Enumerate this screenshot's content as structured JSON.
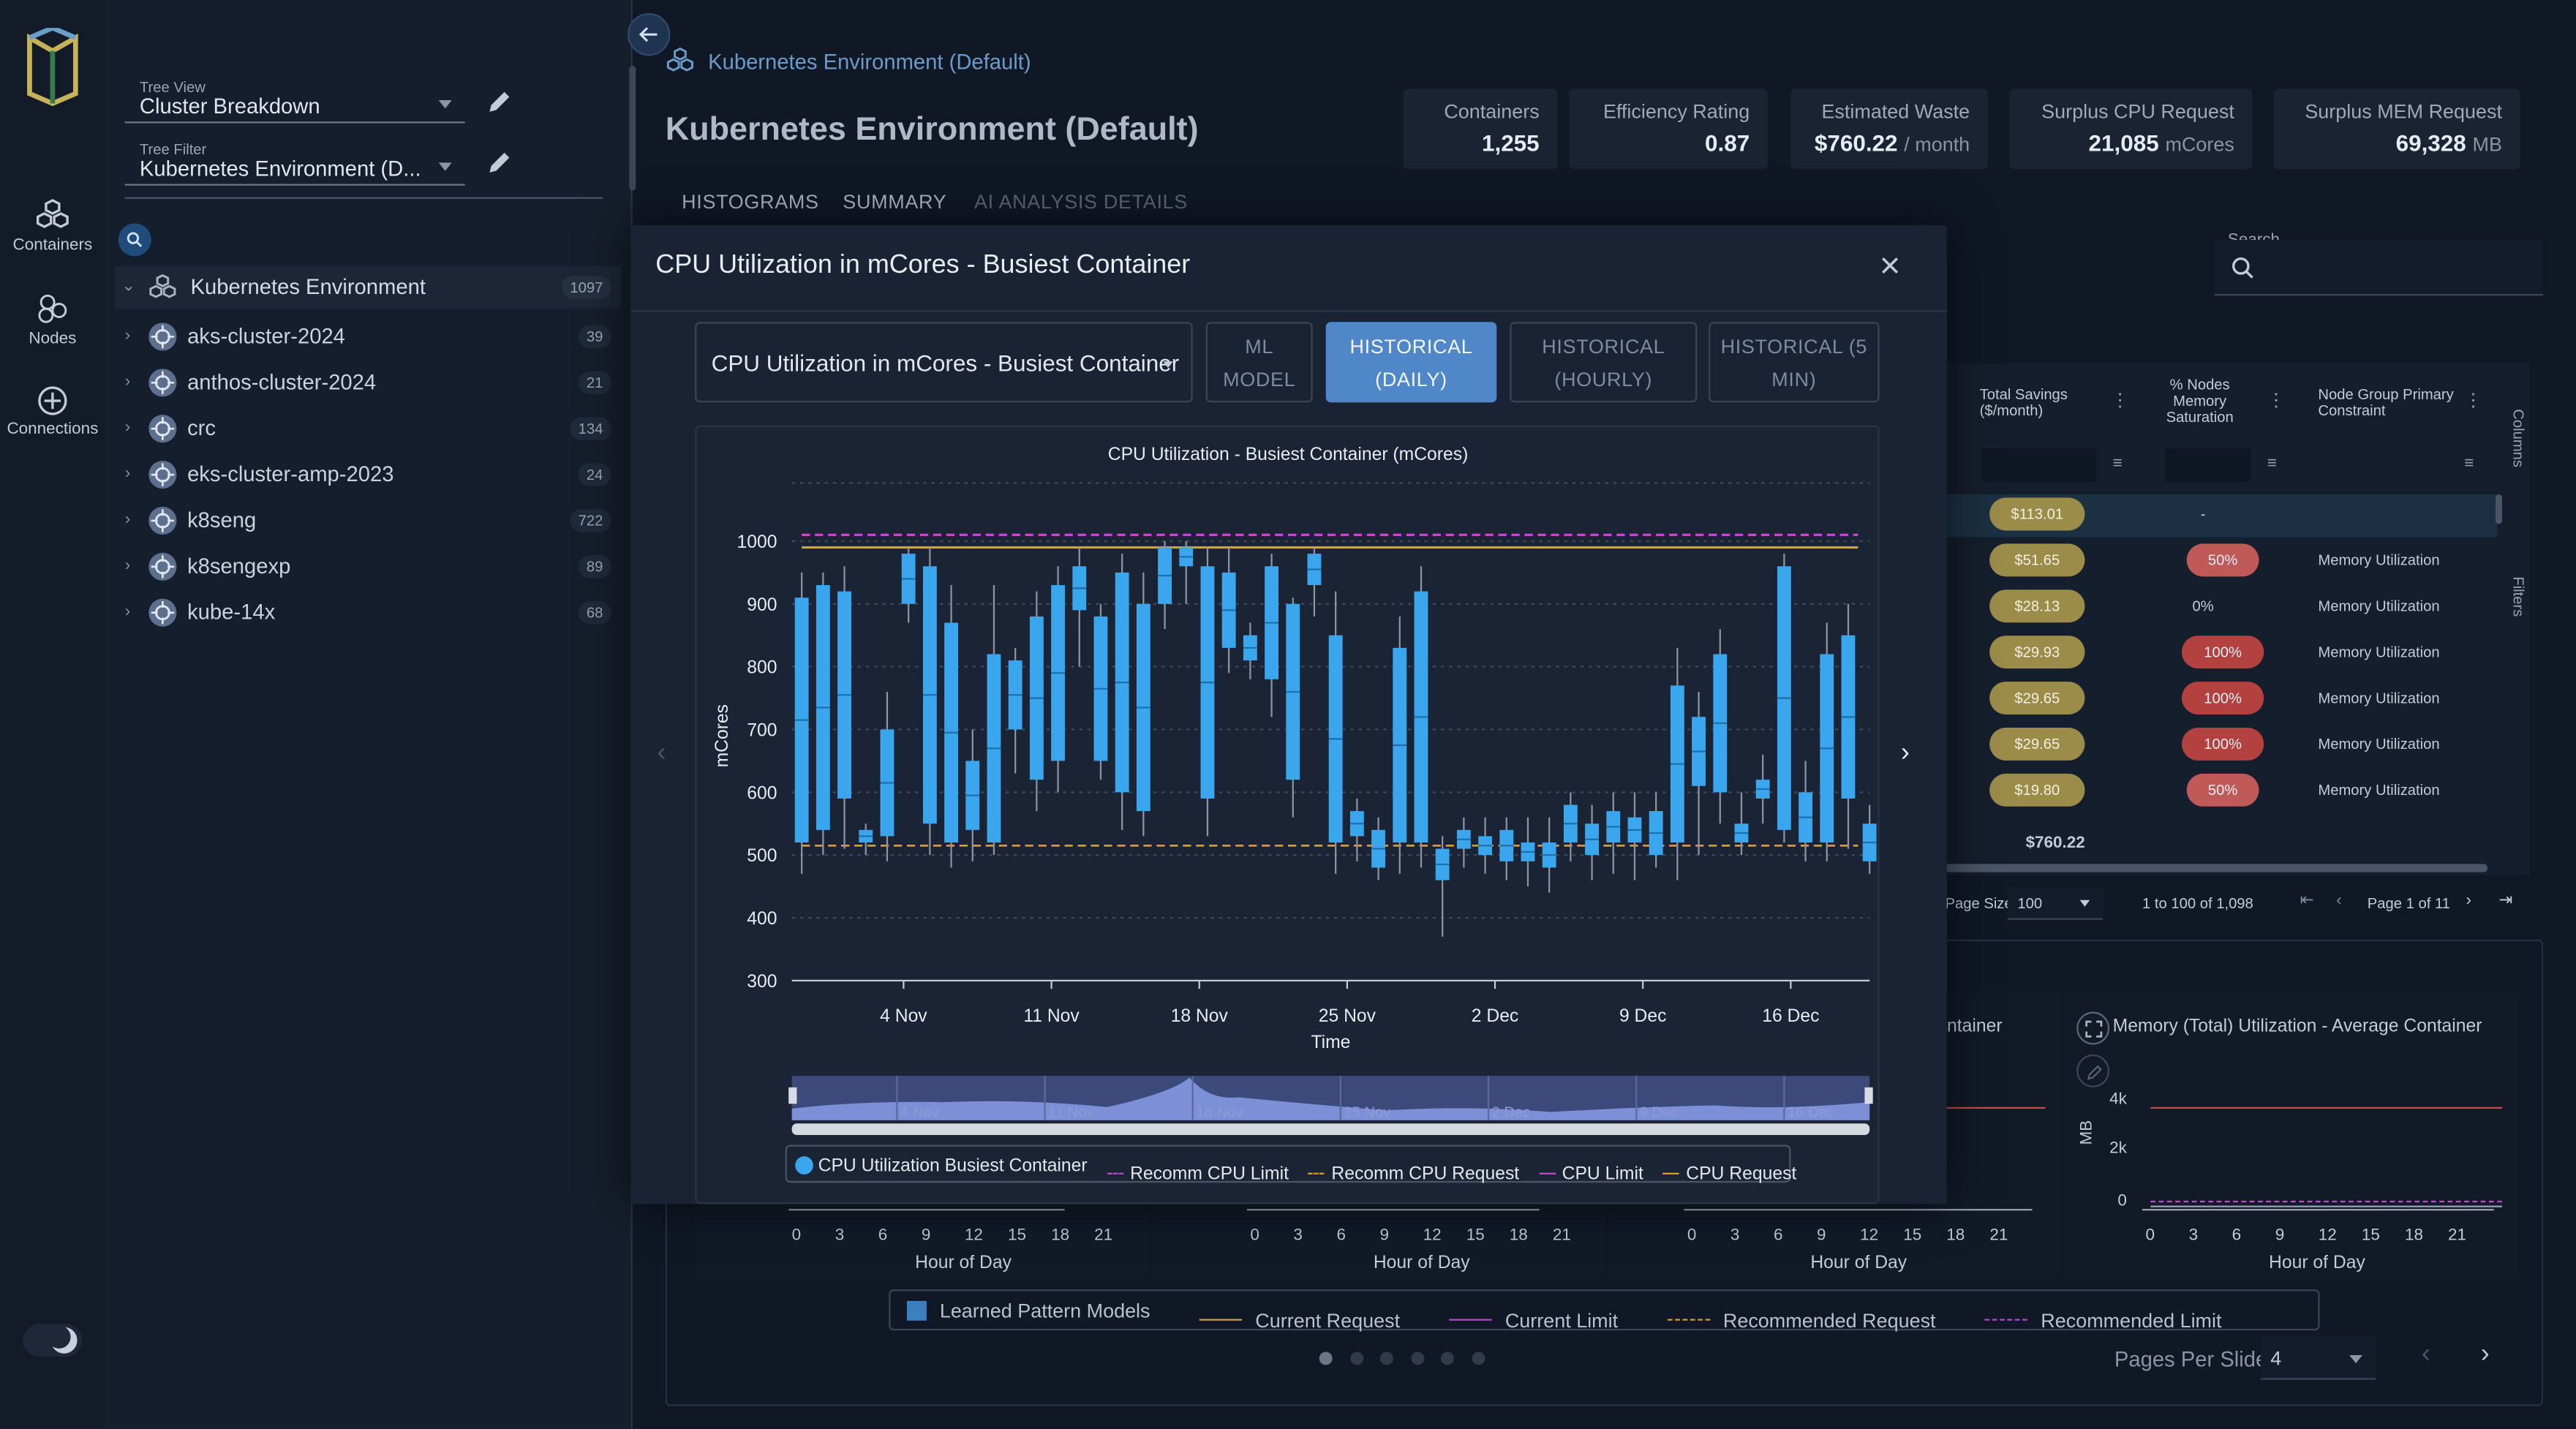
{
  "rail": {
    "items": [
      {
        "label": "Containers",
        "icon": "containers-icon"
      },
      {
        "label": "Nodes",
        "icon": "nodes-icon"
      },
      {
        "label": "Connections",
        "icon": "connections-icon"
      }
    ]
  },
  "tree": {
    "view_label": "Tree View",
    "view_value": "Cluster Breakdown",
    "filter_label": "Tree Filter",
    "filter_value": "Kubernetes Environment (D...",
    "root": {
      "name": "Kubernetes Environment",
      "count": "1097"
    },
    "items": [
      {
        "name": "aks-cluster-2024",
        "count": "39"
      },
      {
        "name": "anthos-cluster-2024",
        "count": "21"
      },
      {
        "name": "crc",
        "count": "134"
      },
      {
        "name": "eks-cluster-amp-2023",
        "count": "24"
      },
      {
        "name": "k8seng",
        "count": "722"
      },
      {
        "name": "k8sengexp",
        "count": "89"
      },
      {
        "name": "kube-14x",
        "count": "68"
      }
    ]
  },
  "header": {
    "breadcrumb": "Kubernetes Environment (Default)",
    "title": "Kubernetes Environment (Default)",
    "stats": [
      {
        "title": "Containers",
        "value": "1,255",
        "unit": ""
      },
      {
        "title": "Efficiency Rating",
        "value": "0.87",
        "unit": ""
      },
      {
        "title": "Estimated Waste",
        "value": "$760.22",
        "unit": "/ month"
      },
      {
        "title": "Surplus CPU Request",
        "value": "21,085",
        "unit": "mCores"
      },
      {
        "title": "Surplus MEM Request",
        "value": "69,328",
        "unit": "MB"
      }
    ],
    "tabs": [
      "HISTOGRAMS",
      "SUMMARY",
      "AI ANALYSIS DETAILS"
    ]
  },
  "search": {
    "label": "Search"
  },
  "grid": {
    "columns": [
      "Total Savings ($/month)",
      "% Nodes Memory Saturation",
      "Node Group Primary Constraint"
    ],
    "rows": [
      {
        "savings": "$113.01",
        "sat": "-",
        "constraint": ""
      },
      {
        "savings": "$51.65",
        "sat": "50%",
        "constraint": "Memory Utilization"
      },
      {
        "savings": "$28.13",
        "sat": "0%",
        "constraint": "Memory Utilization"
      },
      {
        "savings": "$29.93",
        "sat": "100%",
        "constraint": "Memory Utilization"
      },
      {
        "savings": "$29.65",
        "sat": "100%",
        "constraint": "Memory Utilization"
      },
      {
        "savings": "$29.65",
        "sat": "100%",
        "constraint": "Memory Utilization"
      },
      {
        "savings": "$19.80",
        "sat": "50%",
        "constraint": "Memory Utilization"
      }
    ],
    "total": "$760.22",
    "side_columns": "Columns",
    "side_filters": "Filters",
    "pager": {
      "size_label": "Page Size:",
      "size": "100",
      "range": "1 to 100 of 1,098",
      "page": "Page 1 of 11"
    }
  },
  "bottom": {
    "panel_title_partial": "ontainer",
    "panel_title": "Memory (Total) Utilization - Average Container",
    "mem_ticks": [
      "4k",
      "2k",
      "0"
    ],
    "mem_ylabel": "MB",
    "hours": [
      "0",
      "3",
      "6",
      "9",
      "12",
      "15",
      "18",
      "21"
    ],
    "xlabel": "Hour of Day",
    "legend": [
      "Learned Pattern Models",
      "Current Request",
      "Current Limit",
      "Recommended Request",
      "Recommended Limit"
    ],
    "pages_label": "Pages Per Slide",
    "pages_value": "4"
  },
  "modal": {
    "title": "CPU Utilization in mCores - Busiest Container",
    "dropdown": "CPU Utilization in mCores - Busiest Container",
    "buttons": [
      {
        "l1": "ML",
        "l2": "MODEL"
      },
      {
        "l1": "HISTORICAL",
        "l2": "(DAILY)"
      },
      {
        "l1": "HISTORICAL",
        "l2": "(HOURLY)"
      },
      {
        "l1": "HISTORICAL (5",
        "l2": "MIN)"
      }
    ],
    "legend": [
      "CPU Utilization Busiest Container",
      "Recomm CPU Limit",
      "Recomm CPU Request",
      "CPU Limit",
      "CPU Request"
    ]
  },
  "colors": {
    "accent": "#4f87c9",
    "box": "#3aa6ee",
    "limit": "#c04ad0",
    "request": "#e0a020",
    "savings": "#c9b25a",
    "saturation": "#c0504d"
  },
  "chart_data": {
    "type": "candlestick",
    "title": "CPU Utilization - Busiest Container (mCores)",
    "xlabel": "Time",
    "ylabel": "mCores",
    "ylim": [
      300,
      1050
    ],
    "yticks": [
      300,
      400,
      500,
      600,
      700,
      800,
      900,
      1000
    ],
    "xticks": [
      "4 Nov",
      "11 Nov",
      "18 Nov",
      "25 Nov",
      "2 Dec",
      "9 Dec",
      "16 Dec"
    ],
    "x_start_day": 0,
    "days_per_tick": 7,
    "first_tick_offset": 4.5,
    "recomm_cpu_limit": 1010,
    "recomm_cpu_request": 515,
    "cpu_limit": 1010,
    "cpu_request": 990,
    "boxes": [
      [
        1,
        910,
        520,
        950,
        470
      ],
      [
        2,
        930,
        540,
        950,
        500
      ],
      [
        3,
        920,
        590,
        960,
        510
      ],
      [
        4,
        540,
        520,
        550,
        500
      ],
      [
        5,
        700,
        530,
        760,
        490
      ],
      [
        6,
        980,
        900,
        990,
        870
      ],
      [
        7,
        960,
        550,
        990,
        500
      ],
      [
        8,
        870,
        520,
        930,
        480
      ],
      [
        9,
        650,
        540,
        700,
        490
      ],
      [
        10,
        820,
        520,
        930,
        500
      ],
      [
        11,
        810,
        700,
        830,
        630
      ],
      [
        12,
        880,
        620,
        920,
        570
      ],
      [
        13,
        930,
        650,
        960,
        600
      ],
      [
        14,
        960,
        890,
        990,
        800
      ],
      [
        15,
        880,
        650,
        900,
        620
      ],
      [
        16,
        950,
        600,
        980,
        540
      ],
      [
        17,
        900,
        570,
        950,
        530
      ],
      [
        18,
        990,
        900,
        1000,
        860
      ],
      [
        19,
        990,
        960,
        1000,
        900
      ],
      [
        20,
        960,
        590,
        990,
        530
      ],
      [
        21,
        950,
        830,
        990,
        790
      ],
      [
        22,
        850,
        810,
        870,
        780
      ],
      [
        23,
        960,
        780,
        980,
        720
      ],
      [
        24,
        900,
        620,
        910,
        560
      ],
      [
        25,
        980,
        930,
        990,
        880
      ],
      [
        26,
        850,
        520,
        920,
        470
      ],
      [
        27,
        570,
        530,
        590,
        490
      ],
      [
        28,
        540,
        480,
        560,
        460
      ],
      [
        29,
        830,
        520,
        880,
        470
      ],
      [
        30,
        920,
        520,
        960,
        480
      ],
      [
        31,
        510,
        460,
        530,
        370
      ],
      [
        32,
        540,
        510,
        560,
        480
      ],
      [
        33,
        530,
        500,
        560,
        470
      ],
      [
        34,
        540,
        490,
        560,
        460
      ],
      [
        35,
        520,
        490,
        560,
        450
      ],
      [
        36,
        520,
        480,
        560,
        440
      ],
      [
        37,
        580,
        520,
        600,
        490
      ],
      [
        38,
        550,
        500,
        580,
        460
      ],
      [
        39,
        570,
        520,
        600,
        470
      ],
      [
        40,
        560,
        520,
        600,
        460
      ],
      [
        41,
        570,
        500,
        600,
        480
      ],
      [
        42,
        770,
        520,
        830,
        460
      ],
      [
        43,
        720,
        610,
        760,
        500
      ],
      [
        44,
        820,
        600,
        860,
        550
      ],
      [
        45,
        550,
        520,
        600,
        500
      ],
      [
        46,
        620,
        590,
        660,
        550
      ],
      [
        47,
        960,
        540,
        980,
        520
      ],
      [
        48,
        600,
        520,
        650,
        490
      ],
      [
        49,
        820,
        520,
        870,
        490
      ],
      [
        50,
        850,
        590,
        900,
        510
      ],
      [
        51,
        550,
        490,
        580,
        470
      ]
    ],
    "navigator_labels": [
      "4 Nov",
      "11 Nov",
      "18 Nov",
      "25 Nov",
      "2 Dec",
      "9 Dec",
      "16 Dec"
    ]
  }
}
